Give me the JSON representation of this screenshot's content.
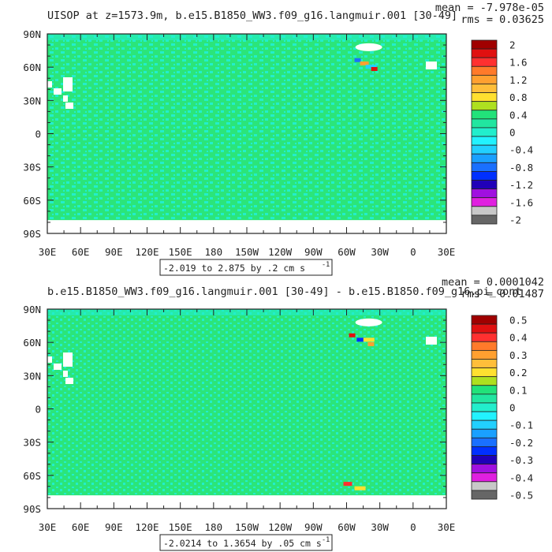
{
  "chart_data": [
    {
      "type": "heatmap",
      "title": "UISOP at z=1573.9m, b.e15.B1850_WW3.f09_g16.langmuir.001 [30-49]",
      "stats": {
        "mean": "mean = -7.978e-05",
        "rms": "rms = 0.03625"
      },
      "range_label": "-2.019 to 2.875 by .2 cm s",
      "range_sup": "-1",
      "x_ticks": [
        "30E",
        "60E",
        "90E",
        "120E",
        "150E",
        "180",
        "150W",
        "120W",
        "90W",
        "60W",
        "30W",
        "0",
        "30E"
      ],
      "y_ticks": [
        "90N",
        "60N",
        "30N",
        "0",
        "30S",
        "60S",
        "90S"
      ],
      "colorbar": {
        "labels": [
          "2",
          "1.6",
          "1.2",
          "0.8",
          "0.4",
          "0",
          "-0.4",
          "-0.8",
          "-1.2",
          "-1.6",
          "-2"
        ],
        "colors": [
          "#a00000",
          "#e01010",
          "#ff3030",
          "#ff7a2a",
          "#ffa030",
          "#ffbe3a",
          "#ffe030",
          "#aee020",
          "#22e27a",
          "#21e6a0",
          "#22eecc",
          "#22f2ff",
          "#22d0ff",
          "#1aa0ff",
          "#1a70ff",
          "#0030ff",
          "#2000b8",
          "#a010e0",
          "#e020e0",
          "#c8c8c8",
          "#666666"
        ]
      },
      "anomalies": [
        {
          "lon": -50,
          "lat": 66,
          "color": "#1a70ff"
        },
        {
          "lon": -45,
          "lat": 63,
          "color": "#ffa030"
        },
        {
          "lon": -40,
          "lat": 60,
          "color": "#22d0ff"
        },
        {
          "lon": -35,
          "lat": 58,
          "color": "#e01010"
        }
      ]
    },
    {
      "type": "heatmap",
      "title": "b.e15.B1850_WW3.f09_g16.langmuir.001 [30-49] - b.e15.B1850.f09_g16.pi_cont",
      "stats": {
        "mean": "mean = 0.0001042",
        "rms": "rms = 0.01487"
      },
      "range_label": "-2.0214 to 1.3654 by .05 cm s",
      "range_sup": "-1",
      "x_ticks": [
        "30E",
        "60E",
        "90E",
        "120E",
        "150E",
        "180",
        "150W",
        "120W",
        "90W",
        "60W",
        "30W",
        "0",
        "30E"
      ],
      "y_ticks": [
        "90N",
        "60N",
        "30N",
        "0",
        "30S",
        "60S",
        "90S"
      ],
      "colorbar": {
        "labels": [
          "0.5",
          "0.4",
          "0.3",
          "0.2",
          "0.1",
          "0",
          "-0.1",
          "-0.2",
          "-0.3",
          "-0.4",
          "-0.5"
        ],
        "colors": [
          "#a00000",
          "#e01010",
          "#ff3030",
          "#ff7a2a",
          "#ffa030",
          "#ffbe3a",
          "#ffe030",
          "#aee020",
          "#22e27a",
          "#21e6a0",
          "#22eecc",
          "#22f2ff",
          "#22d0ff",
          "#1aa0ff",
          "#1a70ff",
          "#0030ff",
          "#2000b8",
          "#a010e0",
          "#e020e0",
          "#c8c8c8",
          "#666666"
        ]
      },
      "anomalies": [
        {
          "lon": -55,
          "lat": 66,
          "color": "#e01010"
        },
        {
          "lon": -48,
          "lat": 62,
          "color": "#0030ff"
        },
        {
          "lon": -42,
          "lat": 62,
          "color": "#ffe030"
        },
        {
          "lon": -38,
          "lat": 58,
          "color": "#ffa030"
        },
        {
          "lon": -60,
          "lat": -68,
          "color": "#ff3030"
        },
        {
          "lon": -50,
          "lat": -72,
          "color": "#ffe030"
        }
      ]
    }
  ]
}
